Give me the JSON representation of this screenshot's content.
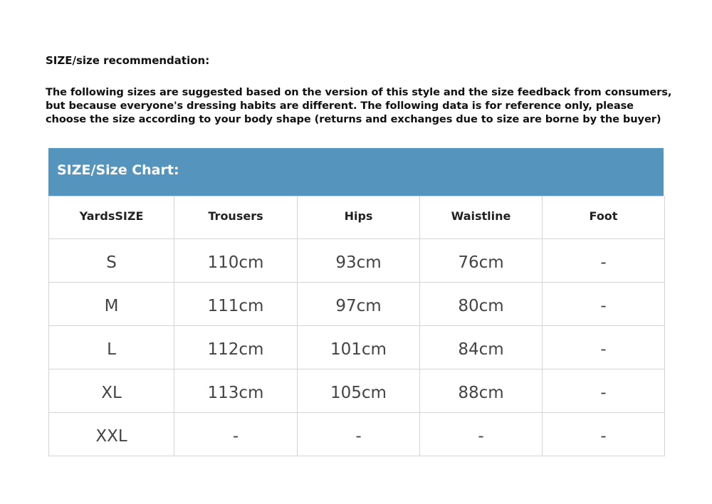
{
  "heading": "SIZE/size recommendation:",
  "intro_lines": [
    "The following sizes are suggested based on the version of this style and the size feedback from consumers,",
    "but because everyone's dressing habits are different. The following data is for reference only, please",
    "choose the size according to your body shape (returns and exchanges due to size are borne by the buyer)"
  ],
  "table": {
    "title": "SIZE/Size Chart:",
    "header_color": "#5594bd",
    "columns": [
      "YardsSIZE",
      "Trousers",
      "Hips",
      "Waistline",
      "Foot"
    ],
    "rows": [
      [
        "S",
        "110cm",
        "93cm",
        "76cm",
        "-"
      ],
      [
        "M",
        "111cm",
        "97cm",
        "80cm",
        "-"
      ],
      [
        "L",
        "112cm",
        "101cm",
        "84cm",
        "-"
      ],
      [
        "XL",
        "113cm",
        "105cm",
        "88cm",
        "-"
      ],
      [
        "XXL",
        "-",
        "-",
        "-",
        "-"
      ]
    ]
  }
}
